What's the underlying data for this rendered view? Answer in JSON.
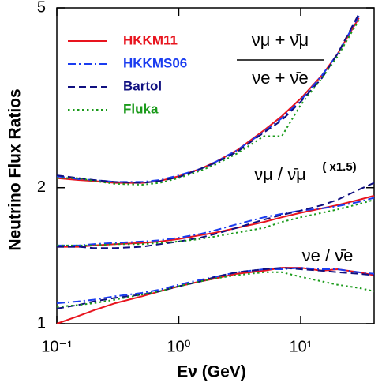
{
  "chart_data": {
    "type": "line",
    "xlabel": "Eν (GeV)",
    "ylabel": "Neutrino Flux Ratios",
    "xscale": "log",
    "yscale": "log",
    "xlim": [
      0.1,
      40
    ],
    "ylim": [
      1,
      5
    ],
    "xticks": [
      {
        "value": 0.1,
        "label": "10⁻¹"
      },
      {
        "value": 1,
        "label": "10⁰"
      },
      {
        "value": 10,
        "label": "10¹"
      }
    ],
    "yticks": [
      1,
      2,
      5
    ],
    "legend": "upper-left",
    "annotations": [
      "νμ + ν̄μ",
      "νe + ν̄e",
      "νμ / ν̄μ",
      "( x1.5)",
      "νe / ν̄e"
    ],
    "x": [
      0.1,
      0.15,
      0.2,
      0.3,
      0.5,
      0.7,
      1,
      1.5,
      2,
      3,
      5,
      7,
      10,
      15,
      20,
      30,
      40
    ],
    "series": [
      {
        "name": "HKKM11",
        "color": "#e8141e",
        "dash": "solid",
        "values": [
          [
            2.1,
            2.08,
            2.07,
            2.05,
            2.05,
            2.07,
            2.12,
            2.2,
            2.28,
            2.42,
            2.68,
            2.88,
            3.15,
            3.55,
            3.95,
            4.75,
            null
          ],
          [
            1.48,
            1.48,
            1.49,
            1.5,
            1.51,
            1.52,
            1.54,
            1.57,
            1.59,
            1.63,
            1.68,
            1.72,
            1.76,
            1.8,
            1.83,
            1.88,
            1.92
          ],
          [
            1.0,
            1.04,
            1.07,
            1.11,
            1.15,
            1.18,
            1.21,
            1.24,
            1.26,
            1.29,
            1.31,
            1.33,
            1.33,
            1.31,
            1.32,
            1.3,
            1.28
          ]
        ]
      },
      {
        "name": "HKKMS06",
        "color": "#1a3cf0",
        "dash": "dashdot",
        "values": [
          [
            2.12,
            2.09,
            2.08,
            2.06,
            2.06,
            2.08,
            2.13,
            2.2,
            2.28,
            2.42,
            2.66,
            2.85,
            3.12,
            3.55,
            3.95,
            4.8,
            null
          ],
          [
            1.49,
            1.49,
            1.5,
            1.51,
            1.52,
            1.53,
            1.55,
            1.58,
            1.61,
            1.66,
            1.72,
            1.75,
            1.78,
            1.8,
            1.82,
            1.86,
            1.9
          ],
          [
            1.11,
            1.12,
            1.13,
            1.15,
            1.17,
            1.19,
            1.22,
            1.25,
            1.27,
            1.3,
            1.32,
            1.32,
            1.33,
            1.32,
            1.32,
            1.3,
            1.29
          ]
        ]
      },
      {
        "name": "Bartol",
        "color": "#101080",
        "dash": "dashed",
        "values": [
          [
            2.13,
            2.1,
            2.08,
            2.06,
            2.05,
            2.07,
            2.11,
            2.2,
            2.27,
            2.4,
            2.65,
            2.82,
            3.1,
            3.5,
            3.95,
            4.85,
            null
          ],
          [
            1.48,
            1.48,
            1.47,
            1.47,
            1.48,
            1.5,
            1.52,
            1.55,
            1.58,
            1.63,
            1.7,
            1.74,
            1.78,
            1.83,
            1.88,
            1.98,
            2.05
          ],
          [
            1.08,
            1.1,
            1.12,
            1.14,
            1.16,
            1.18,
            1.21,
            1.24,
            1.27,
            1.3,
            1.32,
            1.33,
            1.32,
            1.31,
            1.3,
            1.29,
            1.28
          ]
        ]
      },
      {
        "name": "Fluka",
        "color": "#1a9a1a",
        "dash": "dotted",
        "values": [
          [
            2.1,
            2.1,
            2.07,
            2.04,
            2.03,
            2.05,
            2.1,
            2.18,
            2.25,
            2.38,
            2.6,
            2.6,
            3.05,
            3.5,
            3.9,
            4.7,
            null
          ],
          [
            1.49,
            1.49,
            1.49,
            1.5,
            1.5,
            1.51,
            1.52,
            1.54,
            1.56,
            1.59,
            1.63,
            1.68,
            1.72,
            1.76,
            1.79,
            1.84,
            1.88
          ],
          [
            1.09,
            1.1,
            1.11,
            1.13,
            1.16,
            1.18,
            1.21,
            1.24,
            1.26,
            1.28,
            1.3,
            1.3,
            1.27,
            1.24,
            1.22,
            1.2,
            1.18
          ]
        ]
      }
    ]
  }
}
